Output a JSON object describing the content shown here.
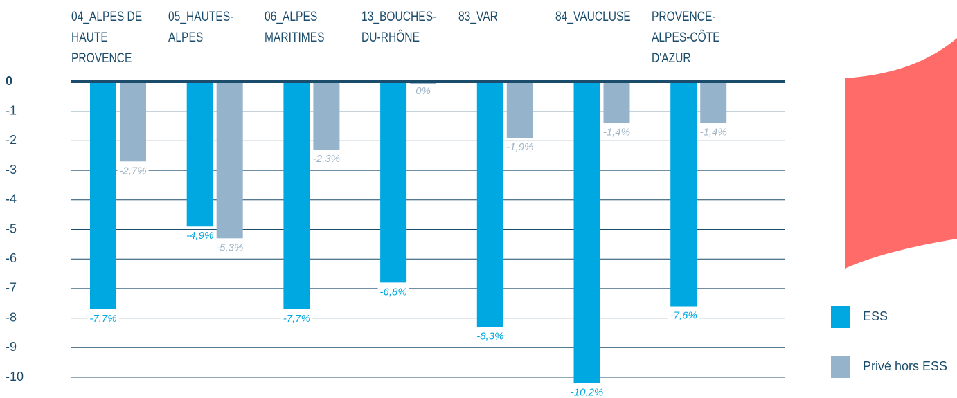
{
  "chart_data": {
    "type": "bar",
    "categories": [
      "04_ALPES DE HAUTE PROVENCE",
      "05_HAUTES-ALPES",
      "06_ALPES MARITIMES",
      "13_BOUCHES-DU-RHÔNE",
      "83_VAR",
      "84_VAUCLUSE",
      "PROVENCE-ALPES-CÔTE D'AZUR"
    ],
    "series": [
      {
        "name": "ESS",
        "color": "#00a8e1",
        "values": [
          -7.7,
          -4.9,
          -7.7,
          -6.8,
          -8.3,
          -10.2,
          -7.6
        ],
        "value_labels": [
          "-7,7%",
          "-4,9%",
          "-7,7%",
          "-6,8%",
          "-8,3%",
          "-10.2%",
          "-7,6%"
        ]
      },
      {
        "name": "Privé hors ESS",
        "color": "#96b3cc",
        "values": [
          -2.7,
          -5.3,
          -2.3,
          0,
          -1.9,
          -1.4,
          -1.4
        ],
        "value_labels": [
          "-2,7%",
          "-5,3%",
          "-2,3%",
          "0%",
          "-1,9%",
          "-1,4%",
          "-1,4%"
        ]
      }
    ],
    "ylim": [
      -10.5,
      0
    ],
    "yticks": [
      0,
      -1,
      -2,
      -3,
      -4,
      -5,
      -6,
      -7,
      -8,
      -9,
      -10
    ],
    "grid": true
  }
}
